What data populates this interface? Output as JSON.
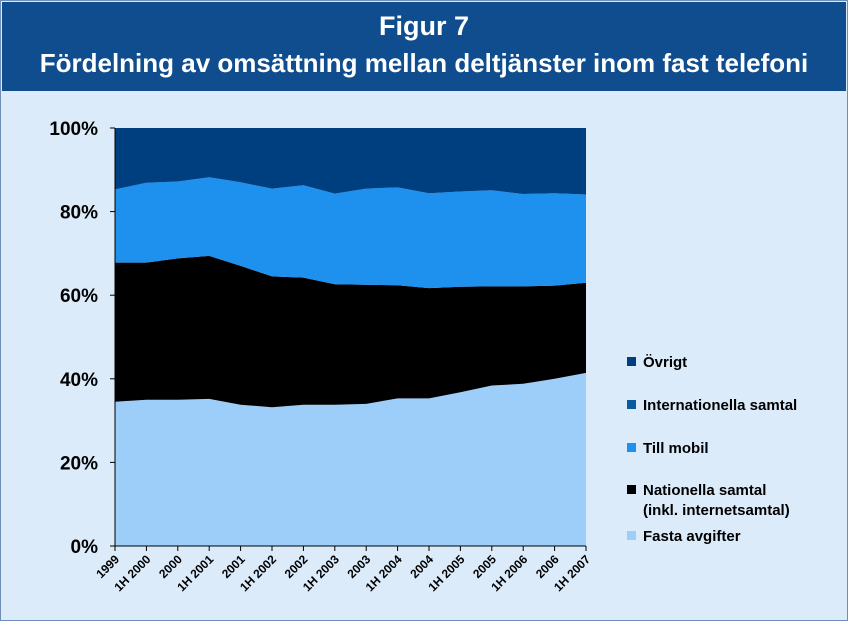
{
  "header": {
    "title": "Figur 7",
    "subtitle": "Fördelning av omsättning mellan deltjänster inom fast telefoni"
  },
  "colors": {
    "header_bg": "#0f4d8f",
    "background": "#dcebfa",
    "series": [
      "#9dcdf9",
      "#000000",
      "#1e90ee",
      "#0a5aa0",
      "#003f7f"
    ]
  },
  "chart_data": {
    "type": "area",
    "stacked": true,
    "percent": true,
    "categories": [
      "1999",
      "1H 2000",
      "2000",
      "1H 2001",
      "2001",
      "1H 2002",
      "2002",
      "1H 2003",
      "2003",
      "1H 2004",
      "2004",
      "1H 2005",
      "2005",
      "1H 2006",
      "2006",
      "1H 2007"
    ],
    "series": [
      {
        "name": "Fasta avgifter",
        "values": [
          34.5,
          35,
          35,
          35.2,
          33.8,
          33.2,
          33.8,
          33.8,
          34.0,
          35.3,
          35.3,
          36.8,
          38.4,
          38.8,
          40.0,
          41.4
        ]
      },
      {
        "name": "Nationella samtal (inkl. internetsamtal)",
        "values": [
          33.3,
          32.8,
          33.8,
          34.2,
          33.2,
          31.3,
          30.4,
          28.8,
          28.5,
          27.1,
          26.4,
          25.2,
          23.7,
          23.3,
          22.3,
          21.6
        ]
      },
      {
        "name": "Till mobil",
        "values": [
          17.5,
          19.1,
          18.4,
          18.8,
          20.0,
          21.0,
          22.1,
          21.7,
          23.0,
          23.4,
          22.7,
          22.8,
          23.0,
          22.1,
          22.1,
          21.1
        ]
      },
      {
        "name": "Internationella samtal",
        "values": [
          0,
          0,
          0,
          0,
          0,
          0,
          0,
          0,
          0,
          0,
          0,
          0,
          0,
          0,
          0,
          0
        ]
      },
      {
        "name": "Övrigt",
        "values": [
          14.7,
          13.1,
          12.8,
          11.8,
          13.0,
          14.5,
          13.7,
          15.7,
          14.5,
          14.2,
          15.6,
          15.2,
          14.9,
          15.8,
          15.6,
          15.9
        ]
      }
    ],
    "y_ticks": [
      "0%",
      "20%",
      "40%",
      "60%",
      "80%",
      "100%"
    ],
    "ylim": [
      0,
      100
    ],
    "legend_position": "right",
    "legend": [
      {
        "series_index": 4,
        "lines": [
          "Övrigt"
        ]
      },
      {
        "series_index": 3,
        "lines": [
          "Internationella samtal"
        ]
      },
      {
        "series_index": 2,
        "lines": [
          "Till mobil"
        ]
      },
      {
        "series_index": 1,
        "lines": [
          "Nationella samtal",
          "(inkl. internetsamtal)"
        ]
      },
      {
        "series_index": 0,
        "lines": [
          "Fasta avgifter"
        ]
      }
    ]
  }
}
